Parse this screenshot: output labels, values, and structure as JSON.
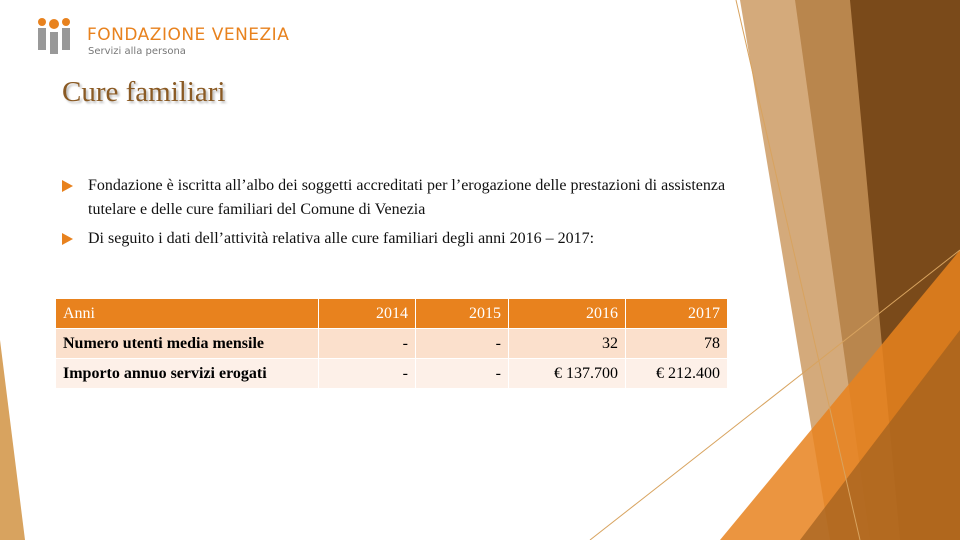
{
  "logo": {
    "name": "FONDAZIONE VENEZIA",
    "tagline": "Servizi alla persona"
  },
  "title": "Cure familiari",
  "bullets": [
    "Fondazione è iscritta all’albo dei soggetti accreditati per l’erogazione delle prestazioni di assistenza tutelare e delle cure familiari del Comune di Venezia",
    "Di seguito i dati dell’attività relativa alle cure familiari degli anni 2016 – 2017:"
  ],
  "table": {
    "header": [
      "Anni",
      "2014",
      "2015",
      "2016",
      "2017"
    ],
    "rows": [
      [
        "Numero utenti media mensile",
        "-",
        "-",
        "32",
        "78"
      ],
      [
        "Importo annuo servizi erogati",
        "-",
        "-",
        "€ 137.700",
        "€ 212.400"
      ]
    ]
  }
}
